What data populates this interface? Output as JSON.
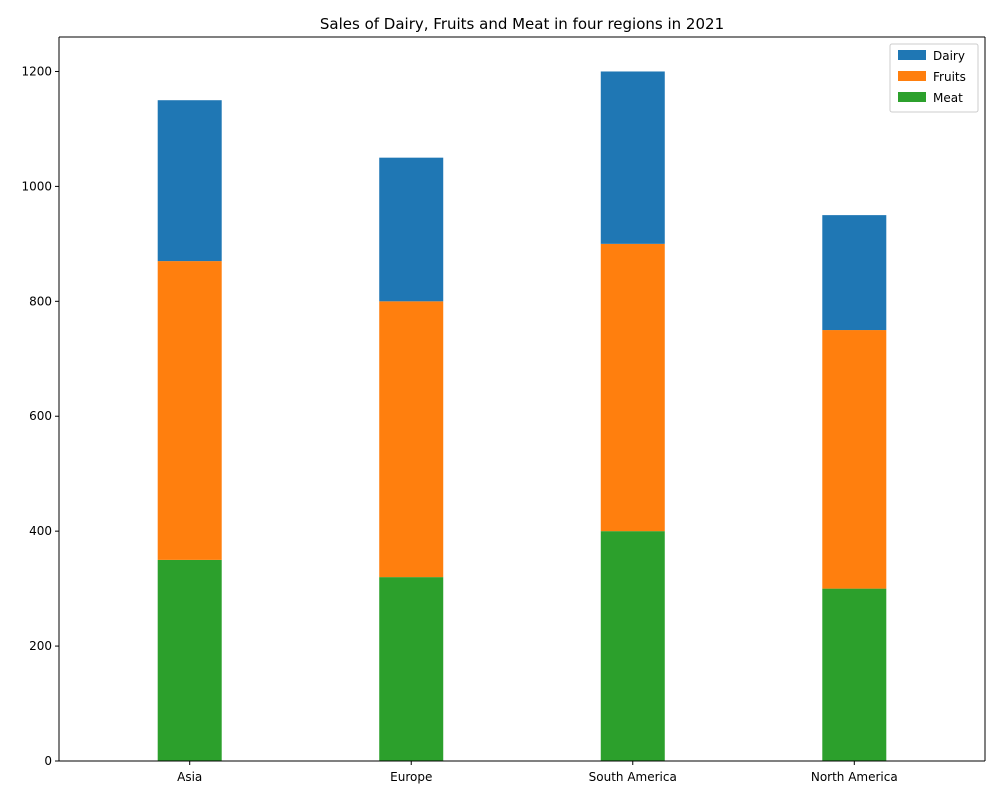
{
  "chart_data": {
    "type": "bar",
    "stacked": true,
    "title": "Sales of Dairy, Fruits and Meat in four regions in 2021",
    "xlabel": "",
    "ylabel": "",
    "categories": [
      "Asia",
      "Europe",
      "South America",
      "North America"
    ],
    "series": [
      {
        "name": "Meat",
        "color": "#2ca02c",
        "values": [
          350,
          320,
          400,
          300
        ]
      },
      {
        "name": "Fruits",
        "color": "#ff7f0e",
        "values": [
          520,
          480,
          500,
          450
        ]
      },
      {
        "name": "Dairy",
        "color": "#1f77b4",
        "values": [
          280,
          250,
          300,
          200
        ]
      }
    ],
    "legend_order": [
      "Dairy",
      "Fruits",
      "Meat"
    ],
    "ylim": [
      0,
      1260
    ],
    "yticks": [
      0,
      200,
      400,
      600,
      800,
      1000,
      1200
    ],
    "grid": false,
    "legend_position": "top-right"
  }
}
